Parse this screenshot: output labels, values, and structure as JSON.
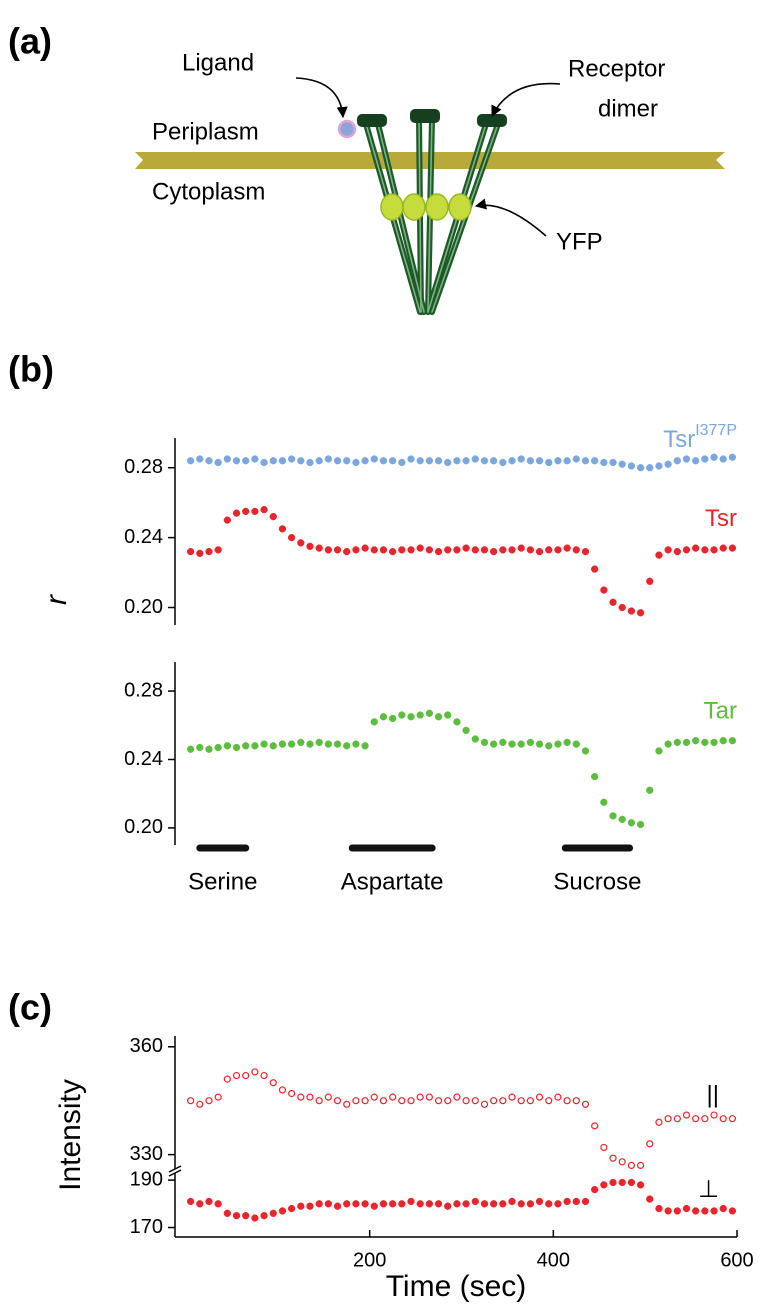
{
  "panel_a": {
    "panel_label": "(a)",
    "ligand": "Ligand",
    "receptor_dimer": [
      "Receptor",
      "dimer"
    ],
    "periplasm": "Periplasm",
    "cytoplasm": "Cytoplasm",
    "yfp": "YFP"
  },
  "chart_data": [
    {
      "type": "scatter",
      "panel_label": "(b)",
      "ylabel": "r",
      "xlim": [
        -12,
        600
      ],
      "ylim": [
        0.19,
        0.297
      ],
      "yticks": [
        0.28,
        0.24,
        {
          "value": 0.2,
          "label": "0.20"
        }
      ],
      "x": [
        5,
        15,
        25,
        35,
        45,
        55,
        65,
        75,
        85,
        95,
        105,
        115,
        125,
        135,
        145,
        155,
        165,
        175,
        185,
        195,
        205,
        215,
        225,
        235,
        245,
        255,
        265,
        275,
        285,
        295,
        305,
        315,
        325,
        335,
        345,
        355,
        365,
        375,
        385,
        395,
        405,
        415,
        425,
        435,
        445,
        455,
        465,
        475,
        485,
        495,
        505,
        515,
        525,
        535,
        545,
        555,
        565,
        575,
        585,
        595
      ],
      "series": [
        {
          "name": "Tsr",
          "name_sup": "I377P",
          "color": "#7ba7de",
          "marker": "filled",
          "values": [
            0.284,
            0.285,
            0.284,
            0.283,
            0.285,
            0.284,
            0.284,
            0.285,
            0.283,
            0.284,
            0.284,
            0.285,
            0.284,
            0.283,
            0.284,
            0.285,
            0.284,
            0.284,
            0.283,
            0.284,
            0.285,
            0.284,
            0.284,
            0.283,
            0.285,
            0.284,
            0.284,
            0.284,
            0.283,
            0.284,
            0.284,
            0.285,
            0.284,
            0.284,
            0.283,
            0.284,
            0.285,
            0.284,
            0.284,
            0.283,
            0.284,
            0.284,
            0.285,
            0.284,
            0.284,
            0.283,
            0.283,
            0.282,
            0.281,
            0.28,
            0.28,
            0.281,
            0.282,
            0.284,
            0.285,
            0.284,
            0.285,
            0.286,
            0.285,
            0.286
          ]
        },
        {
          "name": "Tsr",
          "color": "#e8252c",
          "marker": "filled",
          "values": [
            0.232,
            0.231,
            0.232,
            0.233,
            0.25,
            0.254,
            0.255,
            0.255,
            0.256,
            0.252,
            0.245,
            0.24,
            0.237,
            0.235,
            0.234,
            0.233,
            0.233,
            0.232,
            0.233,
            0.234,
            0.233,
            0.233,
            0.232,
            0.233,
            0.233,
            0.234,
            0.233,
            0.232,
            0.233,
            0.233,
            0.234,
            0.233,
            0.233,
            0.232,
            0.233,
            0.233,
            0.234,
            0.233,
            0.232,
            0.233,
            0.233,
            0.234,
            0.233,
            0.232,
            0.222,
            0.21,
            0.203,
            0.2,
            0.198,
            0.197,
            0.215,
            0.23,
            0.233,
            0.232,
            0.233,
            0.234,
            0.233,
            0.233,
            0.234,
            0.234
          ]
        }
      ]
    },
    {
      "type": "scatter",
      "xlim": [
        -12,
        600
      ],
      "ylim": [
        0.19,
        0.297
      ],
      "yticks": [
        0.28,
        0.24,
        {
          "value": 0.2,
          "label": "0.20"
        }
      ],
      "x": [
        5,
        15,
        25,
        35,
        45,
        55,
        65,
        75,
        85,
        95,
        105,
        115,
        125,
        135,
        145,
        155,
        165,
        175,
        185,
        195,
        205,
        215,
        225,
        235,
        245,
        255,
        265,
        275,
        285,
        295,
        305,
        315,
        325,
        335,
        345,
        355,
        365,
        375,
        385,
        395,
        405,
        415,
        425,
        435,
        445,
        455,
        465,
        475,
        485,
        495,
        505,
        515,
        525,
        535,
        545,
        555,
        565,
        575,
        585,
        595
      ],
      "series": [
        {
          "name": "Tar",
          "color": "#5cbd3e",
          "marker": "filled",
          "values": [
            0.246,
            0.247,
            0.246,
            0.247,
            0.248,
            0.247,
            0.248,
            0.248,
            0.249,
            0.248,
            0.249,
            0.249,
            0.25,
            0.249,
            0.25,
            0.249,
            0.249,
            0.248,
            0.249,
            0.248,
            0.262,
            0.265,
            0.264,
            0.266,
            0.265,
            0.266,
            0.267,
            0.265,
            0.266,
            0.262,
            0.257,
            0.252,
            0.25,
            0.249,
            0.25,
            0.249,
            0.249,
            0.25,
            0.249,
            0.248,
            0.249,
            0.25,
            0.249,
            0.245,
            0.23,
            0.215,
            0.207,
            0.205,
            0.203,
            0.202,
            0.222,
            0.245,
            0.249,
            0.25,
            0.25,
            0.251,
            0.25,
            0.25,
            0.251,
            0.251
          ]
        }
      ],
      "stimuli": [
        {
          "label": "Serine",
          "start": 15,
          "end": 65
        },
        {
          "label": "Aspartate",
          "start": 181,
          "end": 268
        },
        {
          "label": "Sucrose",
          "start": 413,
          "end": 483
        }
      ]
    },
    {
      "type": "scatter",
      "panel_label": "(c)",
      "ylabel": "Intensity",
      "xlim": [
        -12,
        600
      ],
      "ylim": [
        326,
        363
      ],
      "yticks": [
        360,
        330
      ],
      "x": [
        5,
        15,
        25,
        35,
        45,
        55,
        65,
        75,
        85,
        95,
        105,
        115,
        125,
        135,
        145,
        155,
        165,
        175,
        185,
        195,
        205,
        215,
        225,
        235,
        245,
        255,
        265,
        275,
        285,
        295,
        305,
        315,
        325,
        335,
        345,
        355,
        365,
        375,
        385,
        395,
        405,
        415,
        425,
        435,
        445,
        455,
        465,
        475,
        485,
        495,
        505,
        515,
        525,
        535,
        545,
        555,
        565,
        575,
        585,
        595
      ],
      "series": [
        {
          "name": "||",
          "color": "#e8252c",
          "name_color": "#000000",
          "marker": "open",
          "values": [
            345,
            344,
            345,
            346,
            351,
            352,
            352,
            353,
            352,
            350,
            348,
            347,
            346,
            346,
            345,
            346,
            345,
            344,
            345,
            345,
            346,
            345,
            346,
            345,
            345,
            346,
            346,
            345,
            345,
            346,
            345,
            345,
            344,
            345,
            345,
            346,
            345,
            345,
            346,
            345,
            346,
            345,
            345,
            344,
            338,
            332,
            329,
            328,
            327,
            327,
            333,
            339,
            340,
            340,
            341,
            340,
            340,
            341,
            340,
            340
          ]
        }
      ]
    },
    {
      "type": "scatter",
      "xlabel": "Time (sec)",
      "xlim": [
        -12,
        600
      ],
      "ylim": [
        166,
        193
      ],
      "yticks": [
        190,
        170
      ],
      "xticks": [
        200,
        400,
        600
      ],
      "x": [
        5,
        15,
        25,
        35,
        45,
        55,
        65,
        75,
        85,
        95,
        105,
        115,
        125,
        135,
        145,
        155,
        165,
        175,
        185,
        195,
        205,
        215,
        225,
        235,
        245,
        255,
        265,
        275,
        285,
        295,
        305,
        315,
        325,
        335,
        345,
        355,
        365,
        375,
        385,
        395,
        405,
        415,
        425,
        435,
        445,
        455,
        465,
        475,
        485,
        495,
        505,
        515,
        525,
        535,
        545,
        555,
        565,
        575,
        585,
        595
      ],
      "series": [
        {
          "name": "⊥",
          "color": "#e8252c",
          "name_color": "#000000",
          "marker": "filled",
          "values": [
            181,
            180,
            181,
            180,
            176,
            175,
            175,
            174,
            175,
            176,
            177,
            178,
            179,
            179,
            180,
            180,
            179,
            180,
            180,
            180,
            179,
            180,
            180,
            180,
            181,
            180,
            180,
            180,
            179,
            180,
            180,
            181,
            180,
            180,
            180,
            181,
            180,
            180,
            181,
            180,
            180,
            181,
            181,
            181,
            186,
            188,
            189,
            189,
            189,
            188,
            182,
            178,
            177,
            177,
            178,
            177,
            177,
            177,
            178,
            177
          ]
        }
      ]
    }
  ]
}
